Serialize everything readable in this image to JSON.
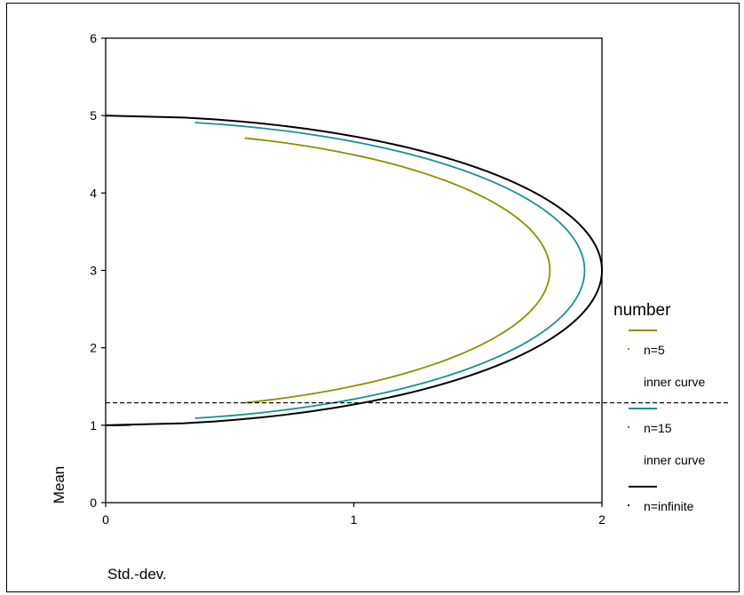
{
  "chart_data": {
    "type": "line",
    "xlabel": "Std.-dev.",
    "ylabel": "Mean",
    "xlim": [
      0,
      2
    ],
    "ylim": [
      0,
      6
    ],
    "x_ticks": [
      "0",
      "1",
      "2"
    ],
    "y_ticks": [
      "0",
      "1",
      "2",
      "3",
      "4",
      "5",
      "6"
    ],
    "grid": false,
    "legend": {
      "title": "number",
      "placement": "right",
      "entries": [
        {
          "label": "n=5",
          "sublabel": "inner curve",
          "color": "#8e8e00"
        },
        {
          "label": "n=15",
          "sublabel": "inner curve",
          "color": "#1a9090"
        },
        {
          "label": "n=infinite",
          "sublabel": "",
          "color": "#000000"
        }
      ]
    },
    "series": [
      {
        "color": "#8e8e00",
        "center": 3,
        "max_sd": 1.79,
        "y_range": [
          1.29,
          4.71
        ],
        "points": [
          [
            0.56,
            1.29
          ],
          [
            1.2,
            1.75
          ],
          [
            1.55,
            2.15
          ],
          [
            1.79,
            3.0
          ],
          [
            1.55,
            3.85
          ],
          [
            1.2,
            4.25
          ],
          [
            0.56,
            4.71
          ]
        ]
      },
      {
        "color": "#1a9090",
        "center": 3,
        "max_sd": 1.93,
        "y_range": [
          1.09,
          4.91
        ],
        "points": [
          [
            0.36,
            1.09
          ],
          [
            1.2,
            1.55
          ],
          [
            1.6,
            2.0
          ],
          [
            1.93,
            3.0
          ],
          [
            1.6,
            4.0
          ],
          [
            1.2,
            4.45
          ],
          [
            0.36,
            4.91
          ]
        ]
      },
      {
        "color": "#000000",
        "center": 3,
        "max_sd": 2.0,
        "y_range": [
          1.0,
          5.0
        ],
        "points": [
          [
            0,
            1.0
          ],
          [
            1.0,
            1.27
          ],
          [
            1.6,
            1.8
          ],
          [
            2.0,
            3.0
          ],
          [
            1.6,
            4.2
          ],
          [
            1.0,
            4.73
          ],
          [
            0,
            5.0
          ]
        ]
      }
    ],
    "reference_line": {
      "y": 1.29,
      "style": "dashed",
      "color": "#000000"
    }
  }
}
